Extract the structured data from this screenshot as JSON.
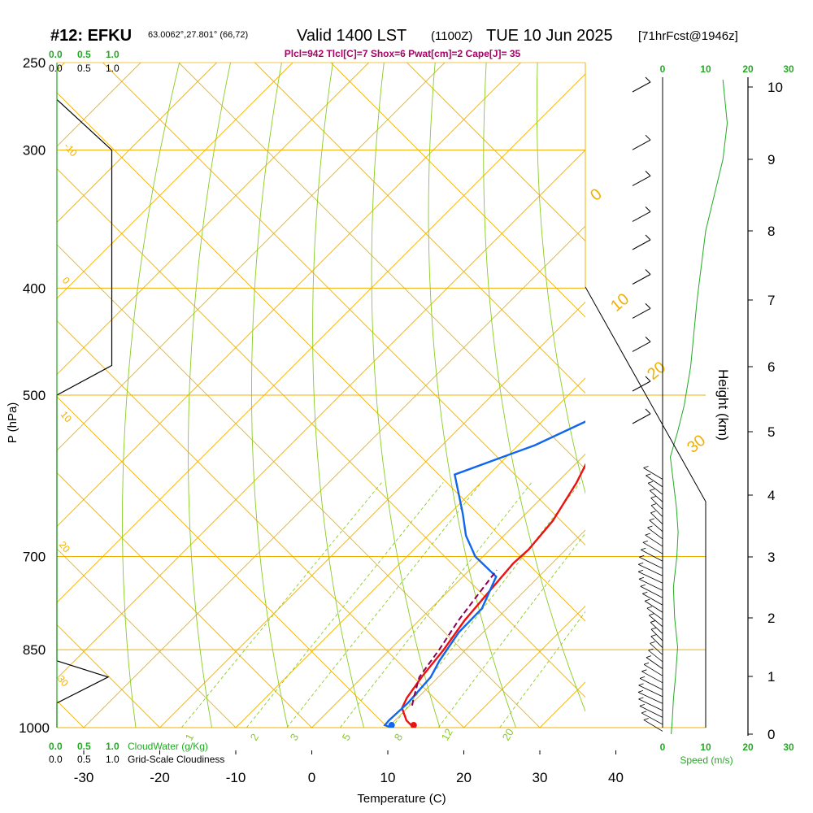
{
  "header": {
    "station": "#12: EFKU",
    "coords": "63.0062°,27.801° (66,72)",
    "valid": "Valid 1400 LST",
    "utc": "(1100Z)",
    "date": "TUE 10 Jun 2025",
    "fcst": "[71hrFcst@1946z]",
    "params": "Plcl=942 Tlcl[C]=7 Shox=6 Pwat[cm]=2 Cape[J]= 35"
  },
  "labels": {
    "p_axis": "P (hPa)",
    "t_axis": "Temperature (C)",
    "h_axis": "Height (km)",
    "speed": "Speed (m/s)",
    "cloudwater": "CloudWater (g/Kg)",
    "cloudiness": "Grid-Scale Cloudiness",
    "scale_cloud_green": [
      "0.0",
      "0.5",
      "1.0"
    ],
    "scale_cloud_black": [
      "0.0",
      "0.5",
      "1.0"
    ],
    "scale_wind": [
      "0",
      "10",
      "20",
      "30"
    ]
  },
  "colors": {
    "temperature": "#ee1111",
    "dewpoint": "#1166ee",
    "parcel": "#880055",
    "isotherm": "#f0b000",
    "dry_adiabat": "#88cc22",
    "mixing_ratio": "#88cc22",
    "wind_speed": "#22aa22",
    "green_text": "#22aa22",
    "magenta_text": "#aa0066"
  },
  "chart_data": {
    "type": "skew-t",
    "xlabel": "Temperature (C)",
    "ylabel": "P (hPa)",
    "xlim": [
      -35,
      45
    ],
    "ylim": [
      1000,
      250
    ],
    "x_ticks": [
      -30,
      -20,
      -10,
      0,
      10,
      20,
      30,
      40
    ],
    "p_ticks": [
      250,
      300,
      400,
      500,
      700,
      850,
      1000
    ],
    "height_ticks_km": [
      0,
      1,
      2,
      3,
      4,
      5,
      6,
      7,
      8,
      9,
      10
    ],
    "isotherm_labels": [
      "-20",
      "-10",
      "0",
      "10",
      "20",
      "30"
    ],
    "left_isotherm_labels": [
      "-10",
      "0",
      "10",
      "20",
      "30"
    ],
    "mixing_ratio_labels": [
      "1",
      "2",
      "3",
      "5",
      "8",
      "12",
      "20"
    ],
    "mixing_ratios": [
      1,
      2,
      3,
      5,
      8,
      12,
      20
    ],
    "series": [
      {
        "name": "Temperature",
        "points": [
          [
            1000,
            13.4
          ],
          [
            985,
            11.5
          ],
          [
            960,
            9.3
          ],
          [
            940,
            8.6
          ],
          [
            900,
            7.8
          ],
          [
            850,
            7.1
          ],
          [
            800,
            6.0
          ],
          [
            750,
            5.4
          ],
          [
            710,
            4.9
          ],
          [
            690,
            5.1
          ],
          [
            650,
            4.5
          ],
          [
            600,
            2.6
          ],
          [
            570,
            1.0
          ],
          [
            520,
            -2.4
          ],
          [
            480,
            -5.0
          ],
          [
            440,
            -8.0
          ],
          [
            400,
            -12.5
          ],
          [
            350,
            -18.5
          ],
          [
            300,
            -26.8
          ],
          [
            280,
            -28.4
          ],
          [
            265,
            -27.6
          ],
          [
            255,
            -25.4
          ]
        ]
      },
      {
        "name": "Dewpoint",
        "points": [
          [
            1000,
            10.5
          ],
          [
            995,
            9.3
          ],
          [
            985,
            9.2
          ],
          [
            950,
            9.4
          ],
          [
            900,
            9.0
          ],
          [
            870,
            8.0
          ],
          [
            820,
            6.8
          ],
          [
            780,
            6.7
          ],
          [
            730,
            4.4
          ],
          [
            700,
            -1.0
          ],
          [
            670,
            -5.0
          ],
          [
            640,
            -8.3
          ],
          [
            590,
            -14.5
          ],
          [
            555,
            -7.8
          ],
          [
            520,
            -3.1
          ],
          [
            495,
            0.6
          ],
          [
            460,
            -1.4
          ],
          [
            400,
            -7.7
          ],
          [
            350,
            -14.9
          ],
          [
            300,
            -24.3
          ],
          [
            280,
            -25.1
          ],
          [
            265,
            -25.0
          ],
          [
            255,
            -24.1
          ]
        ]
      },
      {
        "name": "Parcel",
        "points": [
          [
            955,
            10.3
          ],
          [
            942,
            9.6
          ],
          [
            900,
            7.5
          ],
          [
            850,
            6.5
          ],
          [
            800,
            5.2
          ],
          [
            760,
            4.4
          ],
          [
            720,
            3.6
          ]
        ]
      }
    ],
    "cloudiness_profile": [
      [
        1000,
        0
      ],
      [
        950,
        0
      ],
      [
        900,
        0.7
      ],
      [
        870,
        0.0
      ],
      [
        850,
        0
      ],
      [
        600,
        0
      ],
      [
        500,
        0
      ],
      [
        470,
        0.75
      ],
      [
        300,
        0.75
      ],
      [
        270,
        0
      ]
    ],
    "wind_speed_profile": [
      [
        0,
        2
      ],
      [
        0.2,
        2.2
      ],
      [
        0.6,
        2.5
      ],
      [
        1.0,
        3.0
      ],
      [
        1.5,
        3.5
      ],
      [
        2.0,
        2.8
      ],
      [
        2.5,
        2.5
      ],
      [
        3.0,
        3.3
      ],
      [
        3.4,
        3.6
      ],
      [
        3.8,
        3.2
      ],
      [
        4.2,
        2.5
      ],
      [
        4.6,
        1.8
      ],
      [
        5.0,
        3.5
      ],
      [
        5.4,
        5.0
      ],
      [
        6.0,
        6.5
      ],
      [
        7.0,
        8.0
      ],
      [
        8.0,
        10.0
      ],
      [
        9.0,
        14.0
      ],
      [
        9.5,
        15.0
      ],
      [
        10.1,
        14.0
      ]
    ],
    "wind_barbs": [
      {
        "h_km": 10.0,
        "speed_ms": 5
      },
      {
        "h_km": 9.2,
        "speed_ms": 5
      },
      {
        "h_km": 8.7,
        "speed_ms": 5
      },
      {
        "h_km": 8.2,
        "speed_ms": 5
      },
      {
        "h_km": 7.8,
        "speed_ms": 5
      },
      {
        "h_km": 7.3,
        "speed_ms": 5
      },
      {
        "h_km": 6.8,
        "speed_ms": 5
      },
      {
        "h_km": 6.3,
        "speed_ms": 5
      },
      {
        "h_km": 5.7,
        "speed_ms": 5
      },
      {
        "h_km": 5.2,
        "speed_ms": 5
      }
    ]
  }
}
